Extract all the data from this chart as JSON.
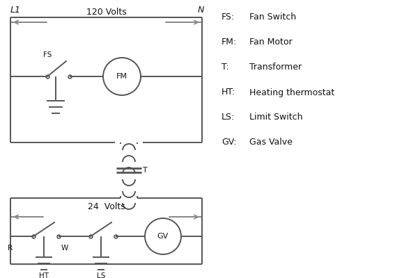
{
  "bg_color": "#ffffff",
  "line_color": "#555555",
  "text_color": "#111111",
  "legend": {
    "FS": "Fan Switch",
    "FM": "Fan Motor",
    "T": "Transformer",
    "HT": "Heating thermostat",
    "LS": "Limit Switch",
    "GV": "Gas Valve"
  },
  "figsize": [
    5.9,
    4.0
  ],
  "dpi": 100
}
